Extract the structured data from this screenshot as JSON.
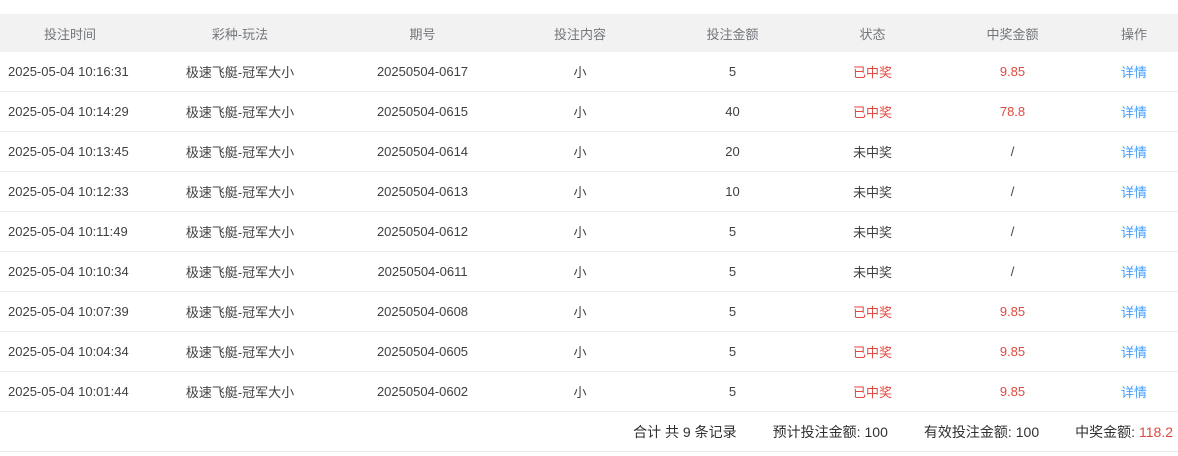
{
  "table": {
    "columns": [
      {
        "label": "投注时间"
      },
      {
        "label": "彩种-玩法"
      },
      {
        "label": "期号"
      },
      {
        "label": "投注内容"
      },
      {
        "label": "投注金额"
      },
      {
        "label": "状态"
      },
      {
        "label": "中奖金额"
      },
      {
        "label": "操作"
      }
    ],
    "rows": [
      {
        "time": "2025-05-04 10:16:31",
        "game": "极速飞艇-冠军大小",
        "issue": "20250504-0617",
        "content": "小",
        "amount": "5",
        "status": "已中奖",
        "won": true,
        "prize": "9.85",
        "action": "详情"
      },
      {
        "time": "2025-05-04 10:14:29",
        "game": "极速飞艇-冠军大小",
        "issue": "20250504-0615",
        "content": "小",
        "amount": "40",
        "status": "已中奖",
        "won": true,
        "prize": "78.8",
        "action": "详情"
      },
      {
        "time": "2025-05-04 10:13:45",
        "game": "极速飞艇-冠军大小",
        "issue": "20250504-0614",
        "content": "小",
        "amount": "20",
        "status": "未中奖",
        "won": false,
        "prize": "/",
        "action": "详情"
      },
      {
        "time": "2025-05-04 10:12:33",
        "game": "极速飞艇-冠军大小",
        "issue": "20250504-0613",
        "content": "小",
        "amount": "10",
        "status": "未中奖",
        "won": false,
        "prize": "/",
        "action": "详情"
      },
      {
        "time": "2025-05-04 10:11:49",
        "game": "极速飞艇-冠军大小",
        "issue": "20250504-0612",
        "content": "小",
        "amount": "5",
        "status": "未中奖",
        "won": false,
        "prize": "/",
        "action": "详情"
      },
      {
        "time": "2025-05-04 10:10:34",
        "game": "极速飞艇-冠军大小",
        "issue": "20250504-0611",
        "content": "小",
        "amount": "5",
        "status": "未中奖",
        "won": false,
        "prize": "/",
        "action": "详情"
      },
      {
        "time": "2025-05-04 10:07:39",
        "game": "极速飞艇-冠军大小",
        "issue": "20250504-0608",
        "content": "小",
        "amount": "5",
        "status": "已中奖",
        "won": true,
        "prize": "9.85",
        "action": "详情"
      },
      {
        "time": "2025-05-04 10:04:34",
        "game": "极速飞艇-冠军大小",
        "issue": "20250504-0605",
        "content": "小",
        "amount": "5",
        "status": "已中奖",
        "won": true,
        "prize": "9.85",
        "action": "详情"
      },
      {
        "time": "2025-05-04 10:01:44",
        "game": "极速飞艇-冠军大小",
        "issue": "20250504-0602",
        "content": "小",
        "amount": "5",
        "status": "已中奖",
        "won": true,
        "prize": "9.85",
        "action": "详情"
      }
    ]
  },
  "summary": {
    "total": "合计 共 9 条记录",
    "expected": {
      "label": "预计投注金额:",
      "value": "100"
    },
    "valid": {
      "label": "有效投注金额:",
      "value": "100"
    },
    "prize": {
      "label": "中奖金额:",
      "value": "118.2"
    }
  },
  "colors": {
    "win_red": "#e0493f",
    "link_blue": "#409eff",
    "header_bg": "#f2f2f3"
  }
}
